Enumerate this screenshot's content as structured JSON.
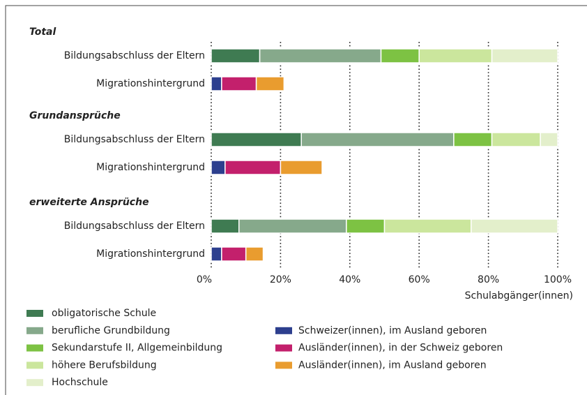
{
  "chart_data": {
    "type": "stacked-bar-horizontal",
    "groups": [
      {
        "name": "Total",
        "categories": [
          "Bildungsabschluss der Eltern",
          "Migrationshintergrund"
        ]
      },
      {
        "name": "Grundansprüche",
        "categories": [
          "Bildungsabschluss der Eltern",
          "Migrationshintergrund"
        ]
      },
      {
        "name": "erweiterte Ansprüche",
        "categories": [
          "Bildungsabschluss der Eltern",
          "Migrationshintergrund"
        ]
      }
    ],
    "series": [
      {
        "name": "obligatorische Schule",
        "color": "#3f7b52",
        "values": [
          14,
          null,
          26,
          null,
          8,
          null
        ]
      },
      {
        "name": "berufliche Grundbildung",
        "color": "#86a98b",
        "values": [
          35,
          null,
          44,
          null,
          31,
          null
        ]
      },
      {
        "name": "Sekundarstufe II, Allgemeinbildung",
        "color": "#7dc243",
        "values": [
          11,
          null,
          11,
          null,
          11,
          null
        ]
      },
      {
        "name": "höhere Berufsbildung",
        "color": "#cbe69d",
        "values": [
          21,
          null,
          14,
          null,
          25,
          null
        ]
      },
      {
        "name": "Hochschule",
        "color": "#e3efcb",
        "values": [
          19,
          null,
          5,
          null,
          25,
          null
        ]
      },
      {
        "name": "Schweizer(innen), im Ausland geboren",
        "color": "#2d3f8e",
        "values": [
          null,
          3,
          null,
          4,
          null,
          3
        ]
      },
      {
        "name": "Ausländer(innen), in der Schweiz geboren",
        "color": "#c3206c",
        "values": [
          null,
          10,
          null,
          16,
          null,
          7
        ]
      },
      {
        "name": "Ausländer(innen), im Ausland geboren",
        "color": "#e99c2f",
        "values": [
          null,
          8,
          null,
          12,
          null,
          5
        ]
      }
    ],
    "xlim": [
      0,
      100
    ],
    "xticks": [
      {
        "value": 0,
        "label": "0%"
      },
      {
        "value": 20,
        "label": "20%"
      },
      {
        "value": 40,
        "label": "40%"
      },
      {
        "value": 60,
        "label": "60%"
      },
      {
        "value": 80,
        "label": "80%"
      },
      {
        "value": 100,
        "label": "100%"
      }
    ],
    "xlabel": "Schulabgänger(innen)",
    "grid": true
  }
}
